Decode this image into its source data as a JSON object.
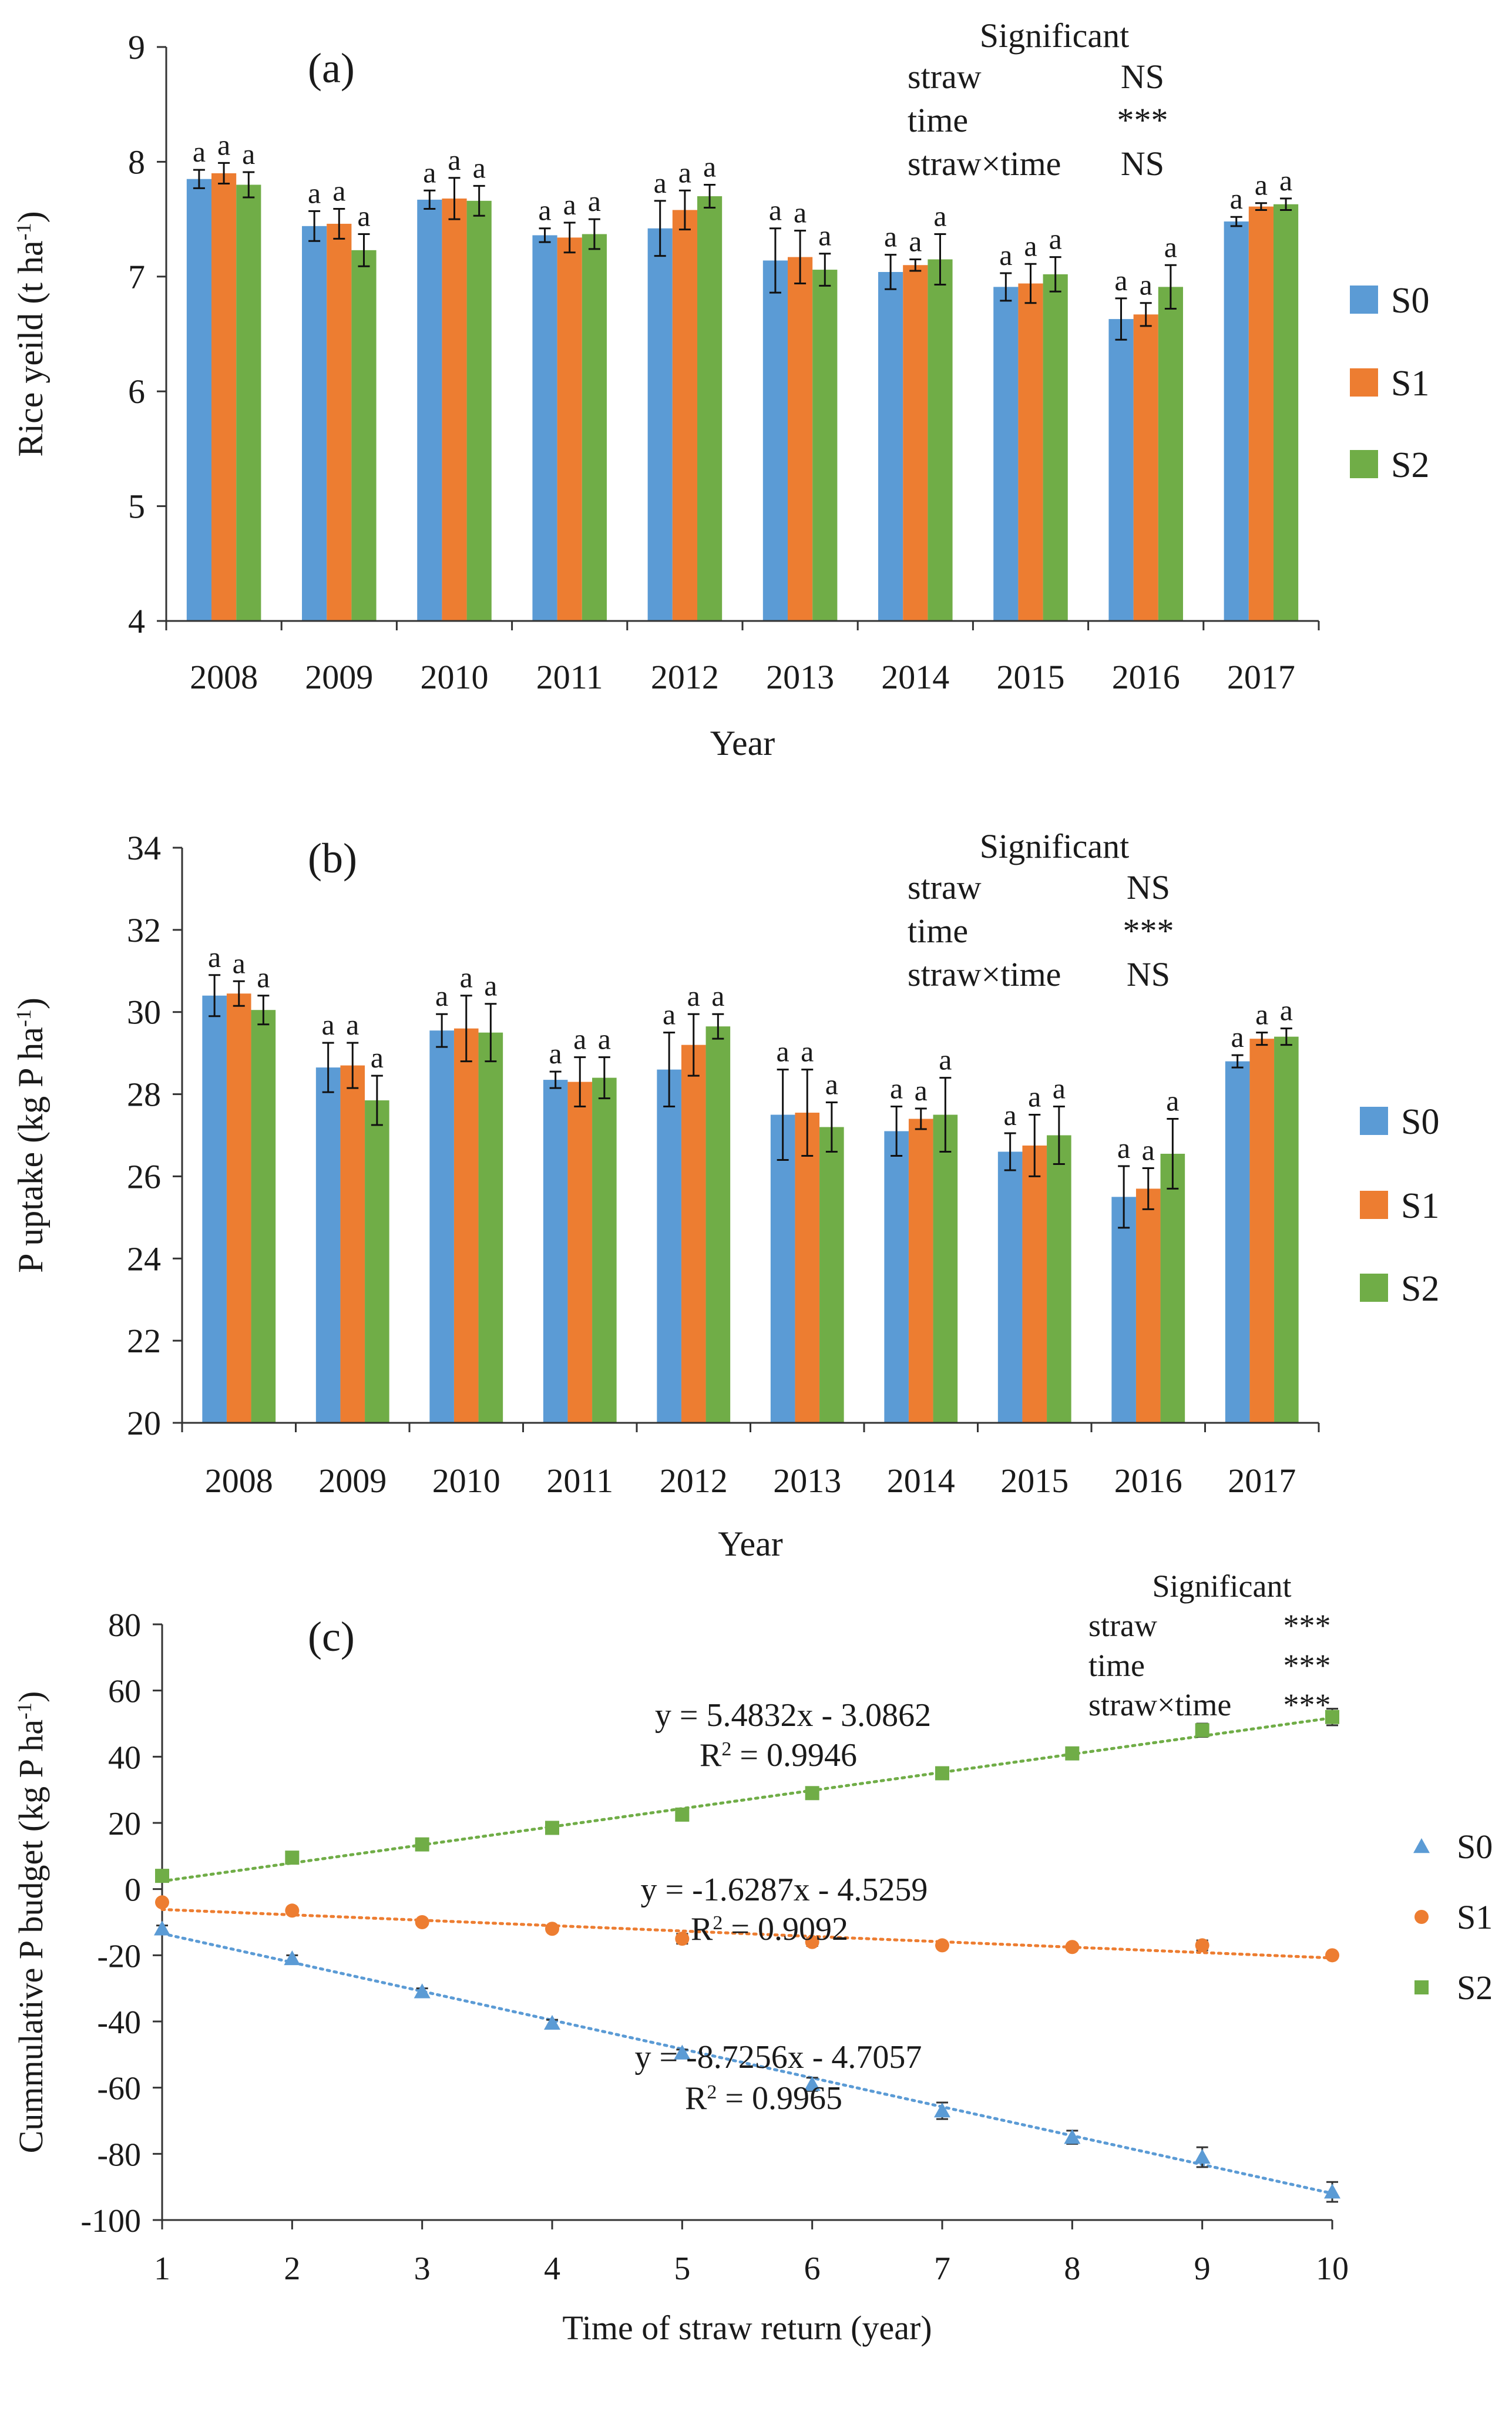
{
  "chart_data": [
    {
      "id": "a",
      "type": "bar",
      "panel_label": "(a)",
      "xlabel": "Year",
      "ylabel": "Rice yeild (t ha",
      "ylabel_sup": "-1",
      "ylabel_end": ")",
      "ylim": [
        4,
        9
      ],
      "yticks": [
        4,
        5,
        6,
        7,
        8,
        9
      ],
      "categories": [
        "2008",
        "2009",
        "2010",
        "2011",
        "2012",
        "2013",
        "2014",
        "2015",
        "2016",
        "2017"
      ],
      "series": [
        {
          "name": "S0",
          "color": "#5B9BD5",
          "values": [
            7.85,
            7.44,
            7.67,
            7.36,
            7.42,
            7.14,
            7.04,
            6.91,
            6.63,
            7.48
          ],
          "errors": [
            0.08,
            0.13,
            0.08,
            0.06,
            0.24,
            0.28,
            0.15,
            0.12,
            0.18,
            0.04
          ],
          "labels": [
            "a",
            "a",
            "a",
            "a",
            "a",
            "a",
            "a",
            "a",
            "a",
            "a"
          ]
        },
        {
          "name": "S1",
          "color": "#ED7D31",
          "values": [
            7.9,
            7.46,
            7.68,
            7.34,
            7.58,
            7.17,
            7.1,
            6.94,
            6.67,
            7.61
          ],
          "errors": [
            0.09,
            0.13,
            0.18,
            0.13,
            0.17,
            0.23,
            0.05,
            0.17,
            0.1,
            0.03
          ],
          "labels": [
            "a",
            "a",
            "a",
            "a",
            "a",
            "a",
            "a",
            "a",
            "a",
            "a"
          ]
        },
        {
          "name": "S2",
          "color": "#70AD47",
          "values": [
            7.8,
            7.23,
            7.66,
            7.37,
            7.7,
            7.06,
            7.15,
            7.02,
            6.91,
            7.63
          ],
          "errors": [
            0.11,
            0.14,
            0.13,
            0.13,
            0.1,
            0.14,
            0.22,
            0.15,
            0.19,
            0.05
          ],
          "labels": [
            "a",
            "a",
            "a",
            "a",
            "a",
            "a",
            "a",
            "a",
            "a",
            "a"
          ]
        }
      ],
      "significance": {
        "title": "Significant",
        "rows": [
          {
            "factor": "straw",
            "value": "NS"
          },
          {
            "factor": "time",
            "value": "***"
          },
          {
            "factor": "straw×time",
            "value": "NS"
          }
        ]
      },
      "legend": [
        "S0",
        "S1",
        "S2"
      ]
    },
    {
      "id": "b",
      "type": "bar",
      "panel_label": "(b)",
      "xlabel": "Year",
      "ylabel": "P uptake (kg P ha",
      "ylabel_sup": "-1",
      "ylabel_end": ")",
      "ylim": [
        20,
        34
      ],
      "yticks": [
        20,
        22,
        24,
        26,
        28,
        30,
        32,
        34
      ],
      "categories": [
        "2008",
        "2009",
        "2010",
        "2011",
        "2012",
        "2013",
        "2014",
        "2015",
        "2016",
        "2017"
      ],
      "series": [
        {
          "name": "S0",
          "color": "#5B9BD5",
          "values": [
            30.4,
            28.65,
            29.55,
            28.35,
            28.6,
            27.5,
            27.1,
            26.6,
            25.5,
            28.8
          ],
          "errors": [
            0.5,
            0.6,
            0.4,
            0.2,
            0.9,
            1.1,
            0.6,
            0.45,
            0.75,
            0.15
          ],
          "labels": [
            "a",
            "a",
            "a",
            "a",
            "a",
            "a",
            "a",
            "a",
            "a",
            "a"
          ]
        },
        {
          "name": "S1",
          "color": "#ED7D31",
          "values": [
            30.45,
            28.7,
            29.6,
            28.3,
            29.2,
            27.55,
            27.4,
            26.75,
            25.7,
            29.35
          ],
          "errors": [
            0.3,
            0.55,
            0.8,
            0.6,
            0.75,
            1.05,
            0.25,
            0.75,
            0.5,
            0.15
          ],
          "labels": [
            "a",
            "a",
            "a",
            "a",
            "a",
            "a",
            "a",
            "a",
            "a",
            "a"
          ]
        },
        {
          "name": "S2",
          "color": "#70AD47",
          "values": [
            30.05,
            27.85,
            29.5,
            28.4,
            29.65,
            27.2,
            27.5,
            27.0,
            26.55,
            29.4
          ],
          "errors": [
            0.35,
            0.6,
            0.7,
            0.5,
            0.3,
            0.6,
            0.9,
            0.7,
            0.85,
            0.2
          ],
          "labels": [
            "a",
            "a",
            "a",
            "a",
            "a",
            "a",
            "a",
            "a",
            "a",
            "a"
          ]
        }
      ],
      "significance": {
        "title": "Significant",
        "rows": [
          {
            "factor": "straw",
            "value": "NS"
          },
          {
            "factor": "time",
            "value": "***"
          },
          {
            "factor": "straw×time",
            "value": "NS"
          }
        ]
      },
      "legend": [
        "S0",
        "S1",
        "S2"
      ]
    },
    {
      "id": "c",
      "type": "scatter",
      "panel_label": "(c)",
      "xlabel": "Time of straw return (year)",
      "ylabel": "Cummulative P budget (kg P ha",
      "ylabel_sup": "-1",
      "ylabel_end": ")",
      "xlim": [
        1,
        10
      ],
      "ylim": [
        -100,
        80
      ],
      "xticks": [
        1,
        2,
        3,
        4,
        5,
        6,
        7,
        8,
        9,
        10
      ],
      "yticks": [
        -100,
        -80,
        -60,
        -40,
        -20,
        0,
        20,
        40,
        60,
        80
      ],
      "series": [
        {
          "name": "S0",
          "color": "#5B9BD5",
          "marker": "triangle",
          "x": [
            1,
            2,
            3,
            4,
            5,
            6,
            7,
            8,
            9,
            10
          ],
          "y": [
            -12,
            -21,
            -31,
            -40.5,
            -49.5,
            -59,
            -67,
            -75,
            -81,
            -91.5
          ],
          "errors": [
            1,
            1,
            1,
            1,
            1,
            2,
            2.5,
            2,
            3,
            3
          ],
          "fit": {
            "slope": -8.7256,
            "intercept": -4.7057
          },
          "equation": "y = -8.7256x - 4.7057",
          "r2_prefix": "R",
          "r2_sup": "2",
          "r2_value": " = 0.9965"
        },
        {
          "name": "S1",
          "color": "#ED7D31",
          "marker": "circle",
          "x": [
            1,
            2,
            3,
            4,
            5,
            6,
            7,
            8,
            9,
            10
          ],
          "y": [
            -4,
            -6.5,
            -10,
            -12,
            -15,
            -16,
            -17,
            -17.5,
            -17,
            -20
          ],
          "errors": [
            0.5,
            0.5,
            0.5,
            0.5,
            1.5,
            1.2,
            0.8,
            0.8,
            1.5,
            0.8
          ],
          "fit": {
            "slope": -1.6287,
            "intercept": -4.5259
          },
          "equation": "y = -1.6287x - 4.5259",
          "r2_prefix": "R",
          "r2_sup": "2",
          "r2_value": " = 0.9092"
        },
        {
          "name": "S2",
          "color": "#70AD47",
          "marker": "square",
          "x": [
            1,
            2,
            3,
            4,
            5,
            6,
            7,
            8,
            9,
            10
          ],
          "y": [
            4,
            9.5,
            13.5,
            18.5,
            22.5,
            29,
            35,
            41,
            48,
            52
          ],
          "errors": [
            0.5,
            0.8,
            0.8,
            0.8,
            1,
            1,
            1,
            1.5,
            2,
            2.5
          ],
          "fit": {
            "slope": 5.4832,
            "intercept": -3.0862
          },
          "equation": "y = 5.4832x - 3.0862",
          "r2_prefix": "R",
          "r2_sup": "2",
          "r2_value": " = 0.9946"
        }
      ],
      "significance": {
        "title": "Significant",
        "rows": [
          {
            "factor": "straw",
            "value": "***"
          },
          {
            "factor": "time",
            "value": "***"
          },
          {
            "factor": "straw×time",
            "value": "***"
          }
        ]
      },
      "legend": [
        "S0",
        "S1",
        "S2"
      ]
    }
  ]
}
